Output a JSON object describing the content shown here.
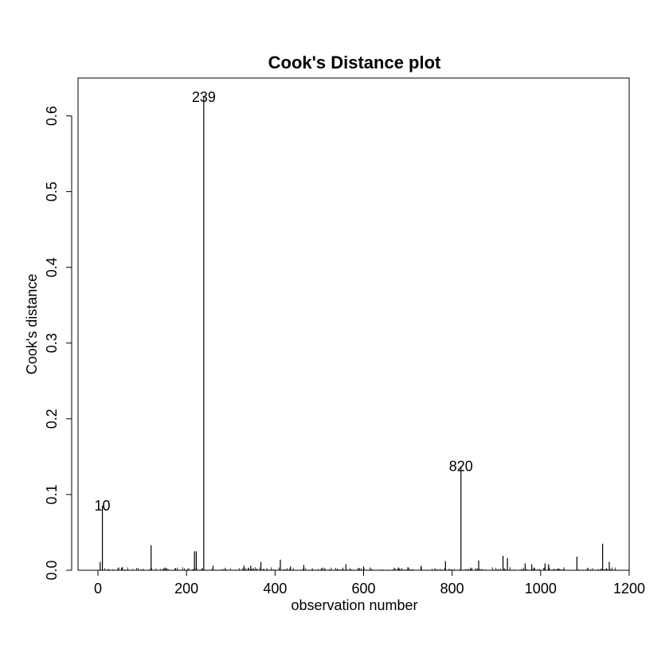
{
  "chart_data": {
    "type": "bar",
    "title": "Cook's Distance plot",
    "xlabel": "observation number",
    "ylabel": "Cook's distance",
    "xlim": [
      -45,
      1200
    ],
    "ylim": [
      0,
      0.65
    ],
    "x_ticks": [
      0,
      200,
      400,
      600,
      800,
      1000,
      1200
    ],
    "x_tick_labels": [
      "0",
      "200",
      "400",
      "600",
      "800",
      "1000",
      "1200"
    ],
    "y_ticks": [
      0.0,
      0.1,
      0.2,
      0.3,
      0.4,
      0.5,
      0.6
    ],
    "y_tick_labels": [
      "0.0",
      "0.1",
      "0.2",
      "0.3",
      "0.4",
      "0.5",
      "0.6"
    ],
    "grid": false,
    "color": "#000000",
    "labeled_points": [
      {
        "label": "10",
        "x": 10,
        "y": 0.085
      },
      {
        "label": "239",
        "x": 239,
        "y": 0.625
      },
      {
        "label": "820",
        "x": 820,
        "y": 0.137
      }
    ],
    "series": [
      {
        "x": [
          5,
          10,
          55,
          120,
          175,
          218,
          222,
          239,
          260,
          330,
          345,
          368,
          412,
          435,
          465,
          560,
          600,
          700,
          730,
          785,
          820,
          860,
          915,
          925,
          965,
          980,
          1010,
          1018,
          1082,
          1140,
          1155
        ],
        "values": [
          0.011,
          0.085,
          0.004,
          0.033,
          0.003,
          0.025,
          0.025,
          0.625,
          0.006,
          0.006,
          0.006,
          0.011,
          0.014,
          0.005,
          0.007,
          0.008,
          0.005,
          0.004,
          0.006,
          0.012,
          0.137,
          0.013,
          0.019,
          0.016,
          0.009,
          0.008,
          0.009,
          0.008,
          0.018,
          0.035,
          0.011
        ]
      }
    ]
  }
}
